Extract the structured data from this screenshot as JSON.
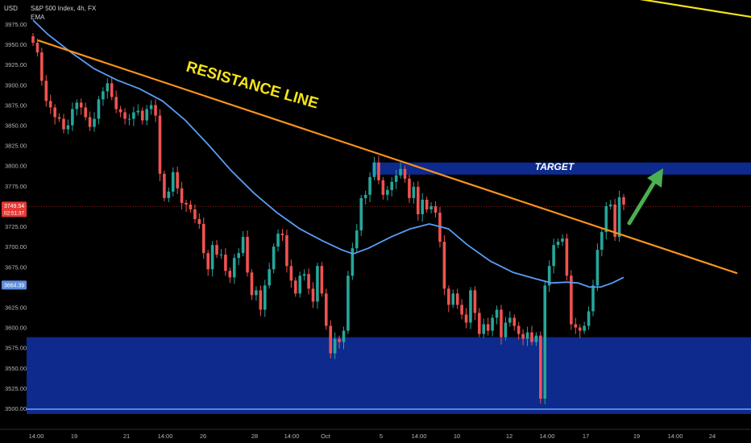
{
  "header": {
    "currency": "USD",
    "symbol_line": "S&P 500 Index, 4h, FX",
    "indicator": "EMA"
  },
  "annotations": {
    "resistance_label": "RESISTANCE LINE",
    "target_label": "TARGET"
  },
  "colors": {
    "background": "#000000",
    "bull": "#26a69a",
    "bear": "#ef5350",
    "ema": "#5b9cf6",
    "resistance": "#f7931a",
    "upper_line": "#f5e31b",
    "zone": "#0d2a8c",
    "support_line": "#6fa3ff",
    "arrow": "#4caf50",
    "price_tag": "#e53935",
    "ema_tag": "#5b8fe0"
  },
  "price_tags": {
    "last_price": "3749.54",
    "countdown": "02:51:37",
    "ema_value": "3664.39"
  },
  "chart_data": {
    "type": "candlestick",
    "y_ticks": [
      "3975.00",
      "3950.00",
      "3925.00",
      "3900.00",
      "3875.00",
      "3850.00",
      "3825.00",
      "3800.00",
      "3775.00",
      "3750.00",
      "3725.00",
      "3700.00",
      "3675.00",
      "3650.00",
      "3625.00",
      "3600.00",
      "3575.00",
      "3550.00",
      "3525.00",
      "3500.00"
    ],
    "x_ticks": [
      "14:00",
      "19",
      "21",
      "14:00",
      "26",
      "28",
      "14:00",
      "Oct",
      "5",
      "14:00",
      "10",
      "12",
      "14:00",
      "17",
      "19",
      "14:00",
      "24"
    ],
    "ylim": [
      3483,
      3990
    ],
    "closes": [
      3952,
      3940,
      3905,
      3880,
      3872,
      3860,
      3858,
      3845,
      3850,
      3870,
      3878,
      3872,
      3860,
      3848,
      3858,
      3882,
      3892,
      3902,
      3885,
      3870,
      3866,
      3858,
      3858,
      3866,
      3868,
      3856,
      3870,
      3875,
      3862,
      3790,
      3760,
      3768,
      3792,
      3772,
      3754,
      3752,
      3746,
      3734,
      3728,
      3692,
      3672,
      3702,
      3690,
      3690,
      3670,
      3662,
      3686,
      3692,
      3712,
      3668,
      3640,
      3646,
      3622,
      3652,
      3672,
      3700,
      3716,
      3714,
      3676,
      3658,
      3642,
      3664,
      3666,
      3648,
      3632,
      3676,
      3642,
      3602,
      3568,
      3586,
      3582,
      3596,
      3664,
      3698,
      3720,
      3760,
      3764,
      3786,
      3804,
      3782,
      3764,
      3770,
      3780,
      3788,
      3796,
      3784,
      3760,
      3774,
      3740,
      3758,
      3746,
      3750,
      3742,
      3706,
      3648,
      3628,
      3642,
      3628,
      3616,
      3606,
      3646,
      3618,
      3592,
      3604,
      3596,
      3612,
      3622,
      3588,
      3606,
      3612,
      3602,
      3592,
      3586,
      3594,
      3582,
      3590,
      3512,
      3652,
      3676,
      3702,
      3706,
      3710,
      3664,
      3604,
      3600,
      3596,
      3602,
      3620,
      3652,
      3696,
      3718,
      3750,
      3752,
      3712,
      3761,
      3752
    ],
    "ema": [
      [
        0,
        3980
      ],
      [
        20,
        3962
      ],
      [
        50,
        3940
      ],
      [
        80,
        3920
      ],
      [
        110,
        3906
      ],
      [
        140,
        3895
      ],
      [
        170,
        3880
      ],
      [
        200,
        3856
      ],
      [
        230,
        3826
      ],
      [
        260,
        3794
      ],
      [
        290,
        3766
      ],
      [
        320,
        3742
      ],
      [
        350,
        3722
      ],
      [
        380,
        3707
      ],
      [
        405,
        3696
      ],
      [
        420,
        3691
      ],
      [
        440,
        3698
      ],
      [
        470,
        3712
      ],
      [
        495,
        3722
      ],
      [
        520,
        3728
      ],
      [
        545,
        3722
      ],
      [
        570,
        3702
      ],
      [
        600,
        3682
      ],
      [
        630,
        3668
      ],
      [
        660,
        3660
      ],
      [
        680,
        3655
      ],
      [
        700,
        3656
      ],
      [
        715,
        3655
      ],
      [
        730,
        3650
      ],
      [
        745,
        3650
      ],
      [
        760,
        3655
      ],
      [
        775,
        3662
      ]
    ],
    "resistance_line": [
      [
        47,
        3955
      ],
      [
        915,
        3667
      ]
    ],
    "upper_line": [
      [
        718,
        4018
      ],
      [
        932,
        3984
      ]
    ],
    "target_zone": {
      "x": [
        462,
        932
      ],
      "y": [
        3789,
        3804
      ]
    },
    "support_zone": {
      "x": [
        33,
        932
      ],
      "y": [
        3493,
        3588
      ]
    },
    "support_level": 3499,
    "last_price_level": 3749.54
  }
}
